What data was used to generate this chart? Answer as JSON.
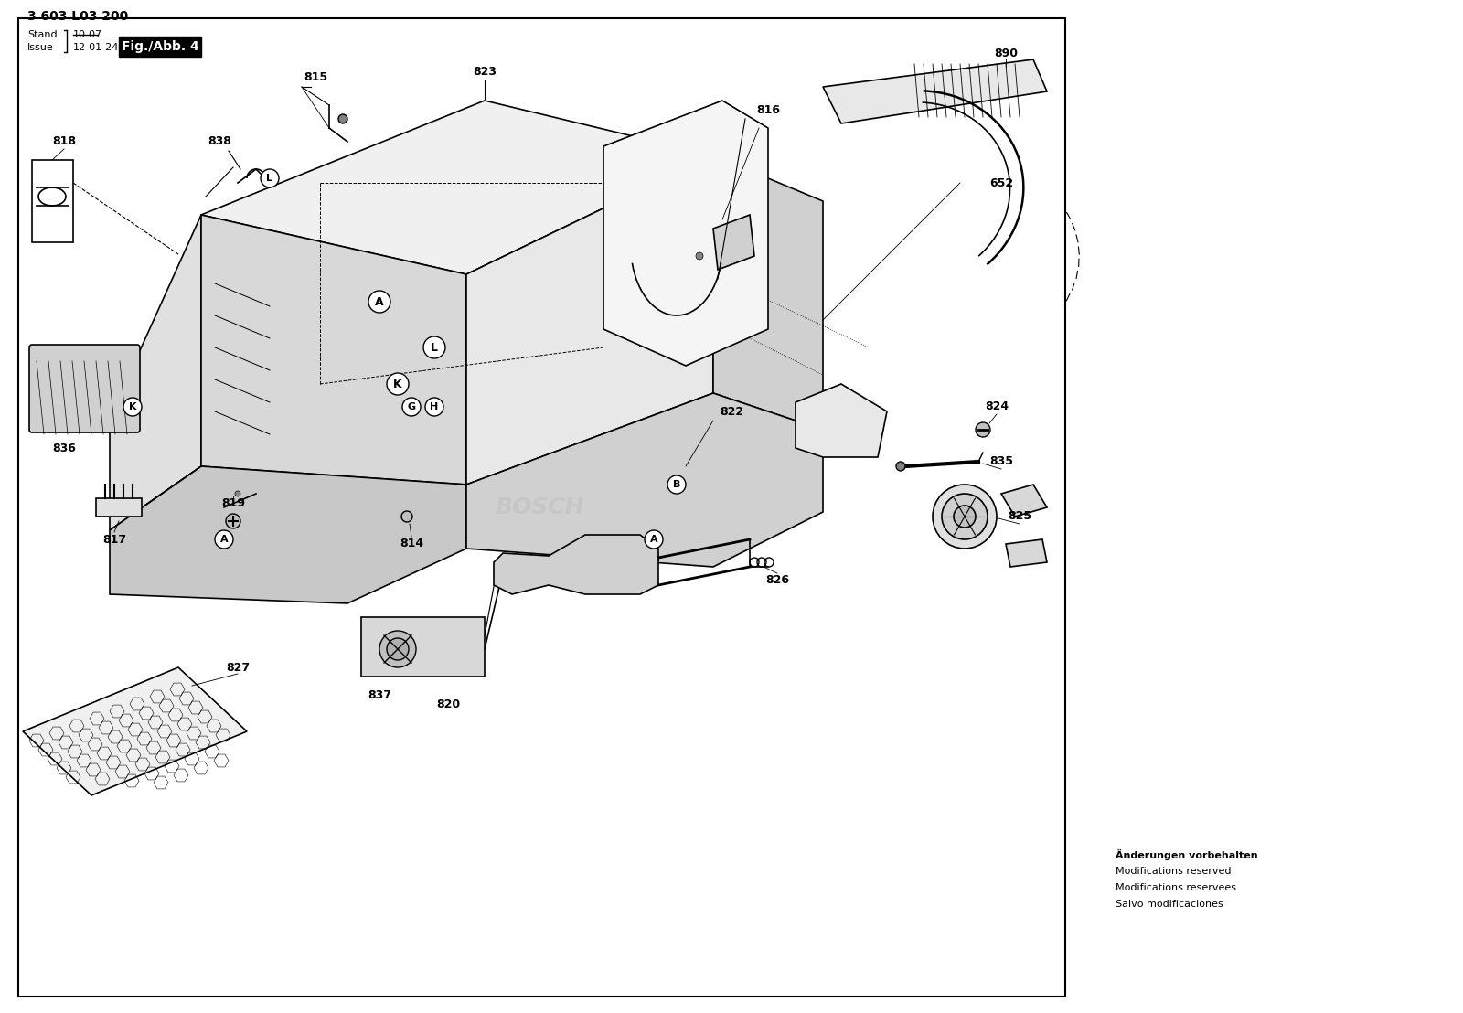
{
  "title_line1": "3 603 L03 200",
  "stand_text": "Stand",
  "stand_val": "10-07",
  "issue_text": "Issue",
  "issue_val": "12-01-24",
  "fig_text": "Fig./Abb. 4",
  "bg_color": "#ffffff",
  "border_color": "#000000",
  "footer_text": [
    "Änderungen vorbehalten",
    "Modifications reserved",
    "Modifications reservees",
    "Salvo modificaciones"
  ]
}
